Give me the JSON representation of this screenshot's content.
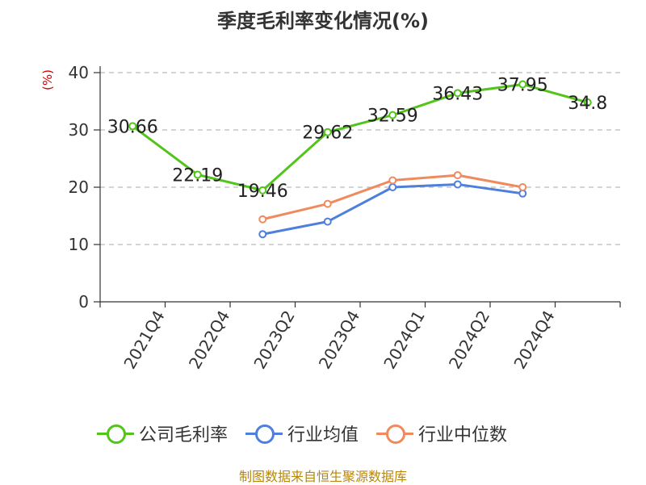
{
  "title": "季度毛利率变化情况(%)",
  "ylabel": "(%)",
  "footer": "制图数据来自恒生聚源数据库",
  "colors": {
    "company": "#52c41a",
    "industry_mean": "#4f7fdc",
    "industry_median": "#f08a5d",
    "grid": "#bbbbbb",
    "axis": "#333333",
    "ylabel": "#cc0000",
    "footer": "#b8860b"
  },
  "legend": [
    {
      "key": "company",
      "label": "公司毛利率"
    },
    {
      "key": "industry_mean",
      "label": "行业均值"
    },
    {
      "key": "industry_median",
      "label": "行业中位数"
    }
  ],
  "chart_data": {
    "type": "line",
    "title": "季度毛利率变化情况(%)",
    "xlabel": "",
    "ylabel": "(%)",
    "ylim": [
      0,
      40
    ],
    "yticks": [
      0,
      10,
      20,
      30,
      40
    ],
    "grid": true,
    "legend_position": "bottom",
    "x_tick_labels": [
      "2021Q4",
      "2022Q4",
      "2023Q2",
      "2023Q4",
      "2024Q1",
      "2024Q2",
      "2024Q4"
    ],
    "categories": [
      "",
      "2021Q4",
      "2022Q4",
      "2023Q2",
      "2023Q4",
      "2024Q1",
      "2024Q2",
      "2024Q4"
    ],
    "series": [
      {
        "name": "公司毛利率",
        "key": "company",
        "values": [
          30.66,
          22.19,
          19.46,
          29.62,
          32.59,
          36.43,
          37.95,
          34.8
        ],
        "data_labels": [
          "30.66",
          "22.19",
          "19.46",
          "29.62",
          "32.59",
          "36.43",
          "37.95",
          "34.8"
        ]
      },
      {
        "name": "行业均值",
        "key": "industry_mean",
        "values": [
          null,
          null,
          11.8,
          14.0,
          20.0,
          20.5,
          18.9,
          null
        ]
      },
      {
        "name": "行业中位数",
        "key": "industry_median",
        "values": [
          null,
          null,
          14.4,
          17.1,
          21.2,
          22.1,
          20.0,
          null
        ]
      }
    ]
  }
}
